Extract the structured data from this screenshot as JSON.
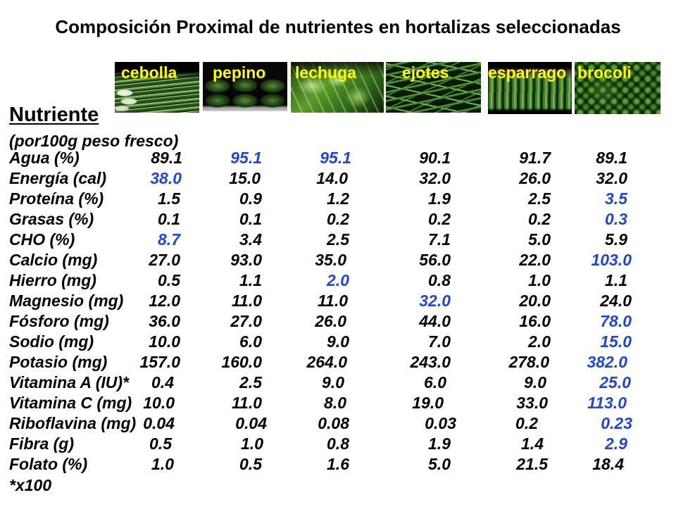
{
  "title": "Composición Proximal de nutrientes en hortalizas seleccionadas",
  "colors": {
    "background": "#ffffff",
    "text": "#000000",
    "highlight": "#2146d0",
    "vegetable_label": "#ffff00"
  },
  "vegetables": [
    "cebolla",
    "pepino",
    "lechuga",
    "ejotes",
    "esparrago",
    "brocoli"
  ],
  "table": {
    "header": "Nutriente",
    "subheader": "(por100g peso fresco)",
    "rows": [
      {
        "label": "Agua (%)",
        "values": [
          "89.1",
          "95.1",
          "95.1",
          "90.1",
          "91.7",
          "89.1"
        ],
        "highlight": [
          1,
          2
        ]
      },
      {
        "label": "Energía (cal)",
        "values": [
          "38.0",
          "15.0",
          "14.0",
          "32.0",
          "26.0",
          "32.0"
        ],
        "highlight": [
          0
        ]
      },
      {
        "label": "Proteína (%)",
        "values": [
          "1.5",
          "0.9",
          "1.2",
          "1.9",
          "2.5",
          "3.5"
        ],
        "highlight": [
          5
        ]
      },
      {
        "label": "Grasas (%)",
        "values": [
          "0.1",
          "0.1",
          "0.2",
          "0.2",
          "0.2",
          "0.3"
        ],
        "highlight": [
          5
        ]
      },
      {
        "label": "CHO (%)",
        "values": [
          "8.7",
          "3.4",
          "2.5",
          "7.1",
          "5.0",
          "5.9"
        ],
        "highlight": [
          0
        ]
      },
      {
        "label": "Calcio (mg)",
        "values": [
          "27.0",
          "93.0",
          "35.0",
          "56.0",
          "22.0",
          "103.0"
        ],
        "highlight": [
          5
        ]
      },
      {
        "label": "Hierro (mg)",
        "values": [
          "0.5",
          "1.1",
          "2.0",
          "0.8",
          "1.0",
          "1.1"
        ],
        "highlight": [
          2
        ]
      },
      {
        "label": "Magnesio (mg)",
        "values": [
          "12.0",
          "11.0",
          "11.0",
          "32.0",
          "20.0",
          "24.0"
        ],
        "highlight": [
          3
        ]
      },
      {
        "label": "Fósforo (mg)",
        "values": [
          "36.0",
          "27.0",
          "26.0",
          "44.0",
          "16.0",
          "78.0"
        ],
        "highlight": [
          5
        ]
      },
      {
        "label": "Sodio (mg)",
        "values": [
          "10.0",
          "6.0",
          "9.0",
          "7.0",
          "2.0",
          "15.0"
        ],
        "highlight": [
          5
        ]
      },
      {
        "label": "Potasio (mg)",
        "values": [
          "157.0",
          "160.0",
          "264.0",
          "243.0",
          "278.0",
          "382.0"
        ],
        "highlight": [
          5
        ]
      },
      {
        "label": "Vitamina A (IU)*",
        "values": [
          "0.4",
          "2.5",
          "9.0",
          "6.0",
          "9.0",
          "25.0"
        ],
        "highlight": [
          5
        ]
      },
      {
        "label": "Vitamina C (mg)",
        "values": [
          "10.0",
          "11.0",
          "8.0",
          "19.0",
          "33.0",
          "113.0"
        ],
        "highlight": [
          5
        ]
      },
      {
        "label": "Riboflavina (mg)",
        "values": [
          "0.04",
          "0.04",
          "0.08",
          "0.03",
          "0.2",
          "0.23"
        ],
        "highlight": [
          5
        ]
      },
      {
        "label": "Fibra (g)",
        "values": [
          "0.5",
          "1.0",
          "0.8",
          "1.9",
          "1.4",
          "2.9"
        ],
        "highlight": [
          5
        ]
      },
      {
        "label": "Folato (%)",
        "values": [
          "1.0",
          "0.5",
          "1.6",
          "5.0",
          "21.5",
          "18.4"
        ],
        "highlight": []
      }
    ],
    "footnote": "*x100"
  }
}
